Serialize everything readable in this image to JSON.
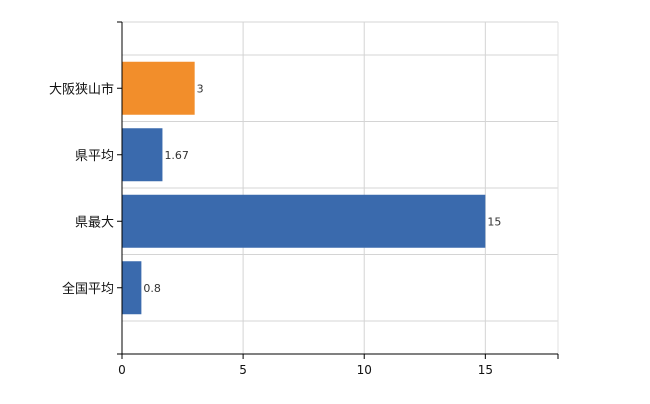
{
  "chart_data": {
    "type": "bar",
    "orientation": "horizontal",
    "categories": [
      "大阪狭山市",
      "県平均",
      "県最大",
      "全国平均"
    ],
    "values": [
      3,
      1.67,
      15,
      0.8
    ],
    "value_labels": [
      "3",
      "1.67",
      "15",
      "0.8"
    ],
    "bar_colors": [
      "#f28e2b",
      "#3a6aad",
      "#3a6aad",
      "#3a6aad"
    ],
    "x_ticks": [
      0,
      5,
      10,
      15
    ],
    "xlim": [
      0,
      18
    ],
    "title": "",
    "xlabel": "",
    "ylabel": "",
    "grid": true
  }
}
